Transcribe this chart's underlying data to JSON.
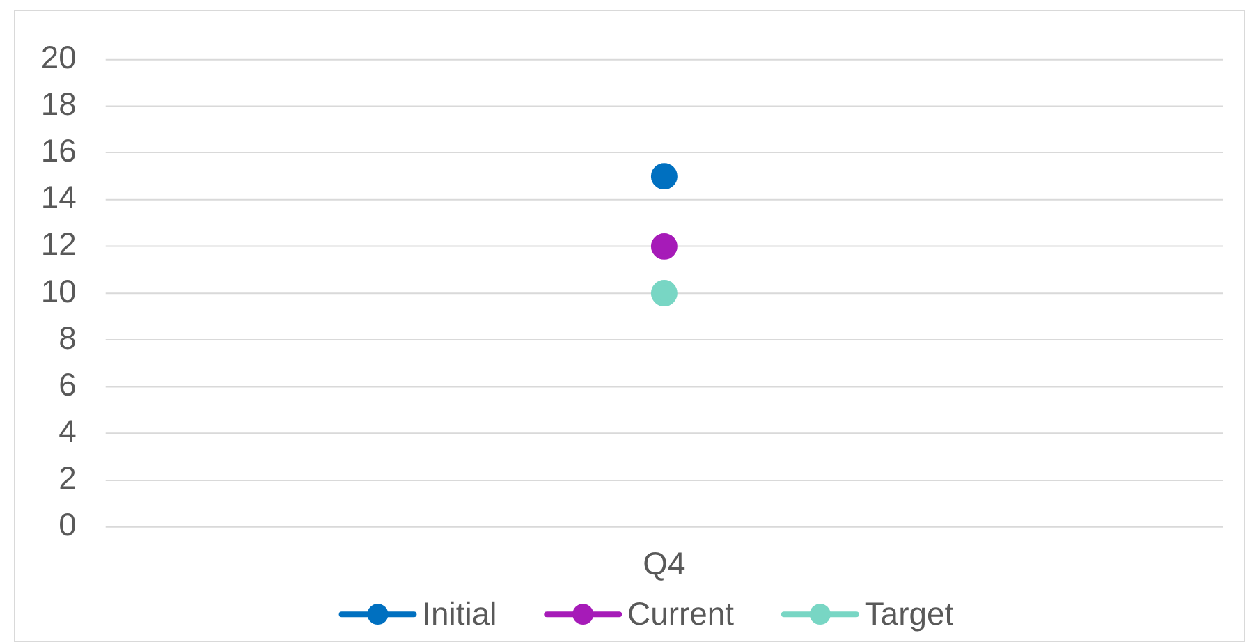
{
  "chart_data": {
    "type": "line",
    "categories": [
      "Q4"
    ],
    "series": [
      {
        "name": "Initial",
        "color": "#0070c0",
        "values": [
          15
        ]
      },
      {
        "name": "Current",
        "color": "#a61bb8",
        "values": [
          12
        ]
      },
      {
        "name": "Target",
        "color": "#78d6c4",
        "values": [
          10
        ]
      }
    ],
    "ylim": [
      0,
      20
    ],
    "yticks": [
      0,
      2,
      4,
      6,
      8,
      10,
      12,
      14,
      16,
      18,
      20
    ],
    "grid": "y",
    "legend": "bottom",
    "marker": "circle",
    "line_style": "solid"
  }
}
